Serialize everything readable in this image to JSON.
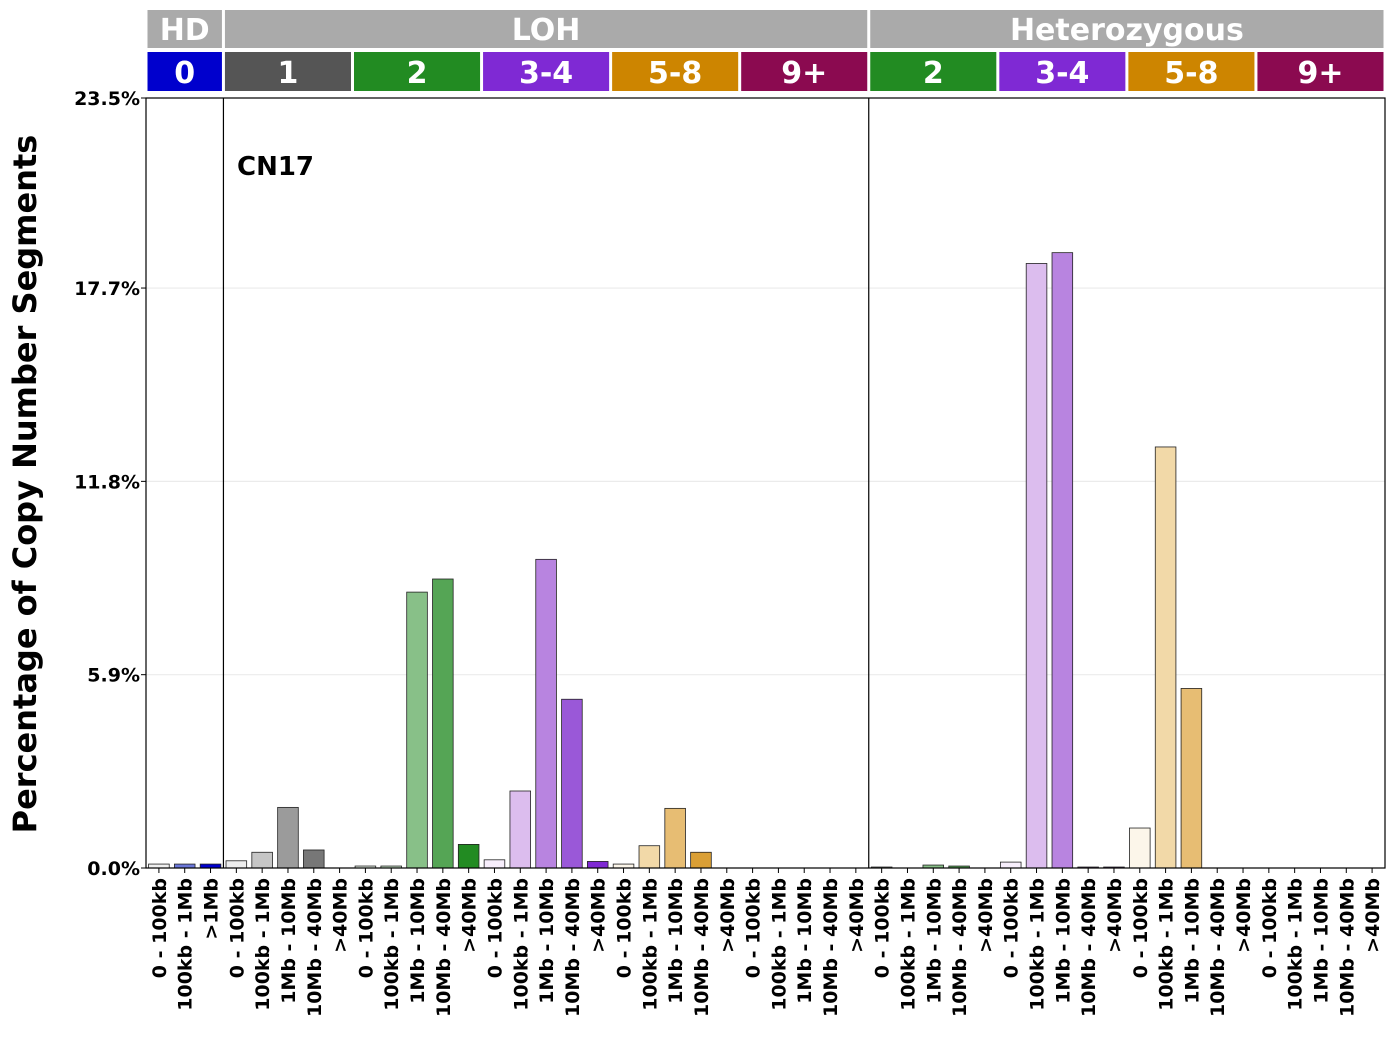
{
  "chart_data": {
    "type": "bar",
    "ylabel": "Percentage of Copy Number Segments",
    "annotation": "CN17",
    "ylim": [
      0,
      23.5
    ],
    "yticks": [
      "0.0%",
      "5.9%",
      "11.8%",
      "17.7%",
      "23.5%"
    ],
    "ytick_values": [
      0,
      5.9,
      11.8,
      17.7,
      23.5
    ],
    "grid": "horizontal",
    "groups": [
      {
        "label": "HD",
        "color": "#aaaaaa",
        "span": 3
      },
      {
        "label": "LOH",
        "color": "#aaaaaa",
        "span": 25
      },
      {
        "label": "Heterozygous",
        "color": "#aaaaaa",
        "span": 20
      }
    ],
    "cn_classes": [
      {
        "label": "0",
        "color": "#0000cd",
        "span": 3
      },
      {
        "label": "1",
        "color": "#555555",
        "span": 5
      },
      {
        "label": "2",
        "color": "#228b22",
        "span": 5
      },
      {
        "label": "3-4",
        "color": "#7f29d4",
        "span": 5
      },
      {
        "label": "5-8",
        "color": "#cd8500",
        "span": 5
      },
      {
        "label": "9+",
        "color": "#8b0a50",
        "span": 5
      },
      {
        "label": "2",
        "color": "#228b22",
        "span": 5
      },
      {
        "label": "3-4",
        "color": "#7f29d4",
        "span": 5
      },
      {
        "label": "5-8",
        "color": "#cd8500",
        "span": 5
      },
      {
        "label": "9+",
        "color": "#8b0a50",
        "span": 5
      }
    ],
    "categories": [
      "0 - 100kb",
      "100kb - 1Mb",
      ">1Mb",
      "0 - 100kb",
      "100kb - 1Mb",
      "1Mb - 10Mb",
      "10Mb - 40Mb",
      ">40Mb",
      "0 - 100kb",
      "100kb - 1Mb",
      "1Mb - 10Mb",
      "10Mb - 40Mb",
      ">40Mb",
      "0 - 100kb",
      "100kb - 1Mb",
      "1Mb - 10Mb",
      "10Mb - 40Mb",
      ">40Mb",
      "0 - 100kb",
      "100kb - 1Mb",
      "1Mb - 10Mb",
      "10Mb - 40Mb",
      ">40Mb",
      "0 - 100kb",
      "100kb - 1Mb",
      "1Mb - 10Mb",
      "10Mb - 40Mb",
      ">40Mb",
      "0 - 100kb",
      "100kb - 1Mb",
      "1Mb - 10Mb",
      "10Mb - 40Mb",
      ">40Mb",
      "0 - 100kb",
      "100kb - 1Mb",
      "1Mb - 10Mb",
      "10Mb - 40Mb",
      ">40Mb",
      "0 - 100kb",
      "100kb - 1Mb",
      "1Mb - 10Mb",
      "10Mb - 40Mb",
      ">40Mb",
      "0 - 100kb",
      "100kb - 1Mb",
      "1Mb - 10Mb",
      "10Mb - 40Mb",
      ">40Mb"
    ],
    "values": [
      0.12,
      0.12,
      0.12,
      0.22,
      0.48,
      1.85,
      0.55,
      0.0,
      0.06,
      0.06,
      8.42,
      8.82,
      0.72,
      0.25,
      2.35,
      9.42,
      5.15,
      0.2,
      0.12,
      0.68,
      1.82,
      0.48,
      0.0,
      0.0,
      0.0,
      0.0,
      0.0,
      0.0,
      0.03,
      0.0,
      0.09,
      0.06,
      0.0,
      0.18,
      18.45,
      18.78,
      0.03,
      0.03,
      1.22,
      12.85,
      5.48,
      0.0,
      0.0,
      0.0,
      0.0,
      0.0,
      0.0,
      0.0
    ],
    "bar_colors": [
      "#f0f0f0",
      "#6b77d9",
      "#0000cd",
      "#eeeeee",
      "#c6c6c6",
      "#9b9b9b",
      "#777777",
      "#555555",
      "#e9f4e9",
      "#c6e1c6",
      "#88c088",
      "#55a555",
      "#228b22",
      "#f7eefc",
      "#dcbdee",
      "#b884e0",
      "#9a58d8",
      "#7f29d4",
      "#fcf6ea",
      "#f2d9a8",
      "#e7bd73",
      "#da9f35",
      "#cd8500",
      "#f8e6ef",
      "#e4a6c6",
      "#c9689e",
      "#a93c78",
      "#8b0a50",
      "#e9f4e9",
      "#c6e1c6",
      "#88c088",
      "#55a555",
      "#228b22",
      "#f7eefc",
      "#dcbdee",
      "#b884e0",
      "#9a58d8",
      "#7f29d4",
      "#fcf6ea",
      "#f2d9a8",
      "#e7bd73",
      "#da9f35",
      "#cd8500",
      "#f8e6ef",
      "#e4a6c6",
      "#c9689e",
      "#a93c78",
      "#8b0a50"
    ],
    "separators_after": [
      3,
      28
    ]
  }
}
